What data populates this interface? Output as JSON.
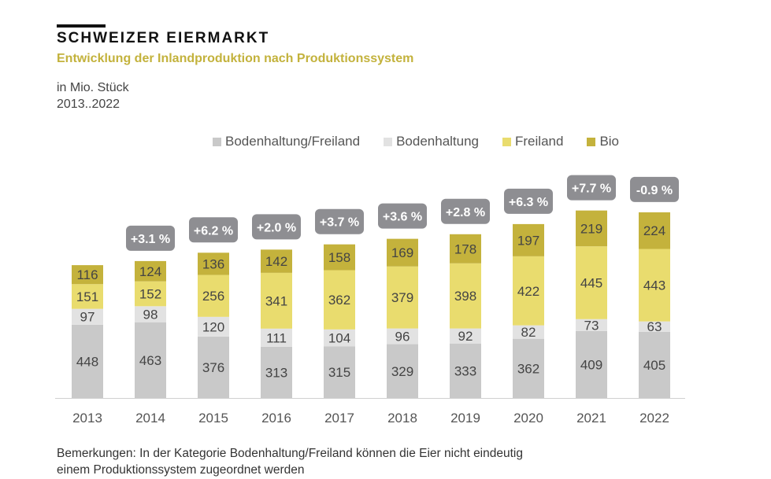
{
  "header": {
    "title": "SCHWEIZER EIERMARKT",
    "subtitle": "Entwicklung  der Inlandproduktion  nach Produktionssystem",
    "unit": "in Mio. Stück",
    "period": "2013..2022"
  },
  "note": {
    "line1": "Bemerkungen:  In der Kategorie Bodenhaltung/Freiland  können die Eier nicht eindeutig",
    "line2": "einem Produktionssystem zugeordnet  werden"
  },
  "chart_data": {
    "type": "bar",
    "stacked": true,
    "title": "Entwicklung der Inlandproduktion nach Produktionssystem",
    "ylabel": "in Mio. Stück",
    "legend_position": "top",
    "categories": [
      "2013",
      "2014",
      "2015",
      "2016",
      "2017",
      "2018",
      "2019",
      "2020",
      "2021",
      "2022"
    ],
    "series": [
      {
        "name": "Bodenhaltung/Freiland",
        "color": "#c9c9c9",
        "values": [
          448,
          463,
          376,
          313,
          315,
          329,
          333,
          362,
          409,
          405
        ]
      },
      {
        "name": "Bodenhaltung",
        "color": "#e2e2e2",
        "values": [
          97,
          98,
          120,
          111,
          104,
          96,
          92,
          82,
          73,
          63
        ]
      },
      {
        "name": "Freiland",
        "color": "#e9dc6e",
        "values": [
          151,
          152,
          256,
          341,
          362,
          379,
          398,
          422,
          445,
          443
        ]
      },
      {
        "name": "Bio",
        "color": "#c4b23c",
        "values": [
          116,
          124,
          136,
          142,
          158,
          169,
          178,
          197,
          219,
          224
        ]
      }
    ],
    "growth_labels": [
      "",
      "+3.1 %",
      "+6.2 %",
      "+2.0 %",
      "+3.7 %",
      "+3.6 %",
      "+2.8 %",
      "+6.3 %",
      "+7.7 %",
      "-0.9  %"
    ],
    "badge_color": "#8e8e92"
  }
}
